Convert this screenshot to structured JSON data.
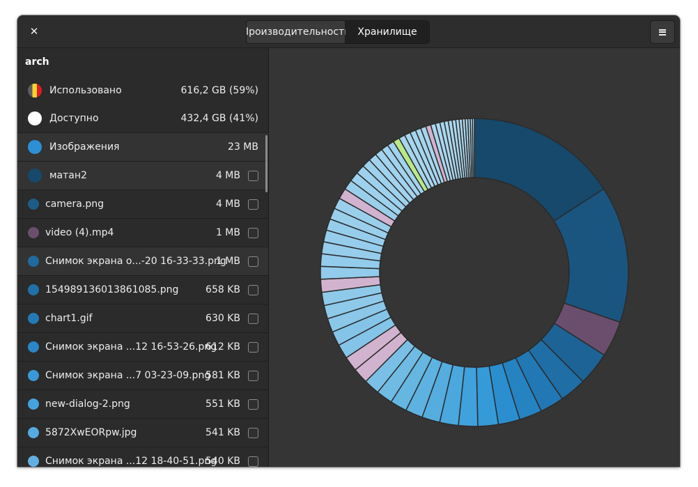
{
  "header": {
    "close_glyph": "✕",
    "tabs": [
      {
        "label": "Производительность",
        "active": false
      },
      {
        "label": "Хранилище",
        "active": true
      }
    ],
    "menu_icon": "hamburger-icon"
  },
  "disk": {
    "name": "arch",
    "used": {
      "label": "Использовано",
      "value": "616,2 GB (59%)"
    },
    "free": {
      "label": "Доступно",
      "value": "432,4 GB (41%)"
    }
  },
  "items": [
    {
      "name": "Изображения",
      "size": "23 MB",
      "color": "#2d8fd5",
      "checkbox": false,
      "big": true,
      "shift": true
    },
    {
      "name": "матан2",
      "size": "4 MB",
      "color": "#16496b",
      "checkbox": true,
      "big": true,
      "shift": true
    },
    {
      "name": "camera.png",
      "size": "4 MB",
      "color": "#1c5c87",
      "checkbox": true
    },
    {
      "name": "video (4).mp4",
      "size": "1 MB",
      "color": "#6b4e6d",
      "checkbox": true
    },
    {
      "name": "Снимок экрана о...-20 16-33-33.png",
      "size": "1 MB",
      "color": "#1f6a9f",
      "checkbox": true
    },
    {
      "name": "154989136013861085.png",
      "size": "658 KB",
      "color": "#2170a8",
      "checkbox": true
    },
    {
      "name": "chart1.gif",
      "size": "630 KB",
      "color": "#2579b5",
      "checkbox": true
    },
    {
      "name": "Снимок экрана ...12 16-53-26.png",
      "size": "612 KB",
      "color": "#2b86c8",
      "checkbox": true
    },
    {
      "name": " Снимок экрана ...7 03-23-09.png",
      "size": "581 KB",
      "color": "#3a98d8",
      "checkbox": true
    },
    {
      "name": "new-dialog-2.png",
      "size": "551 KB",
      "color": "#46a2de",
      "checkbox": true
    },
    {
      "name": "5872XwEORpw.jpg",
      "size": "541 KB",
      "color": "#55aae0",
      "checkbox": true
    },
    {
      "name": "Снимок экрана ...12 18-40-51.png",
      "size": "540 KB",
      "color": "#62b0e2",
      "checkbox": true
    }
  ],
  "chart_data": {
    "type": "pie",
    "donut": true,
    "values": [
      6.3,
      5.7,
      1.5,
      1.4,
      1.1,
      1.0,
      0.95,
      0.9,
      0.85,
      0.8,
      0.78,
      0.75,
      0.72,
      0.7,
      0.68,
      0.66,
      0.64,
      0.62,
      0.6,
      0.6,
      0.58,
      0.56,
      0.55,
      0.54,
      0.53,
      0.52,
      0.5,
      0.49,
      0.48,
      0.47,
      0.46,
      0.45,
      0.42,
      0.4,
      0.38,
      0.36,
      0.34,
      0.32,
      0.3,
      0.28,
      0.27,
      0.26,
      0.25,
      0.24,
      0.23,
      0.22,
      0.21,
      0.2,
      0.19,
      0.18,
      0.17,
      0.16,
      0.15,
      0.14,
      0.13,
      0.12,
      0.11,
      0.1,
      0.09,
      0.08
    ],
    "colors": [
      "#16496b",
      "#1a5580",
      "#6b4e6d",
      "#1d6395",
      "#1f6ea6",
      "#2278b5",
      "#2683c2",
      "#2b8fcf",
      "#359ad8",
      "#40a1dc",
      "#4aa8de",
      "#55addf",
      "#5db2e1",
      "#66b6e2",
      "#70bbe4",
      "#7ac0e6",
      "#d1b3cf",
      "#d1b3cf",
      "#84c4e8",
      "#84c4e8",
      "#8ac7e9",
      "#8ec9ea",
      "#8ec9ea",
      "#d1b3cf",
      "#92cbeb",
      "#92cbeb",
      "#96cdec",
      "#96cdec",
      "#96cdec",
      "#9acfec",
      "#9acfec",
      "#d1b3cf",
      "#9acfec",
      "#9ed1ed",
      "#9ed1ed",
      "#9ed1ed",
      "#a2d3ee",
      "#a2d3ee",
      "#a2d3ee",
      "#a2d3ee",
      "#b8e986",
      "#a6d5ee",
      "#a6d5ee",
      "#a6d5ee",
      "#a6d5ee",
      "#a6d5ee",
      "#d1b3cf",
      "#aad7ef",
      "#aad7ef",
      "#aad7ef",
      "#aad7ef",
      "#aad7ef",
      "#aad7ef",
      "#aed9f0",
      "#aed9f0",
      "#aed9f0",
      "#aed9f0",
      "#aed9f0",
      "#aed9f0",
      "#aed9f0"
    ],
    "stroke": "#2b2b2b",
    "background": "#353535"
  }
}
